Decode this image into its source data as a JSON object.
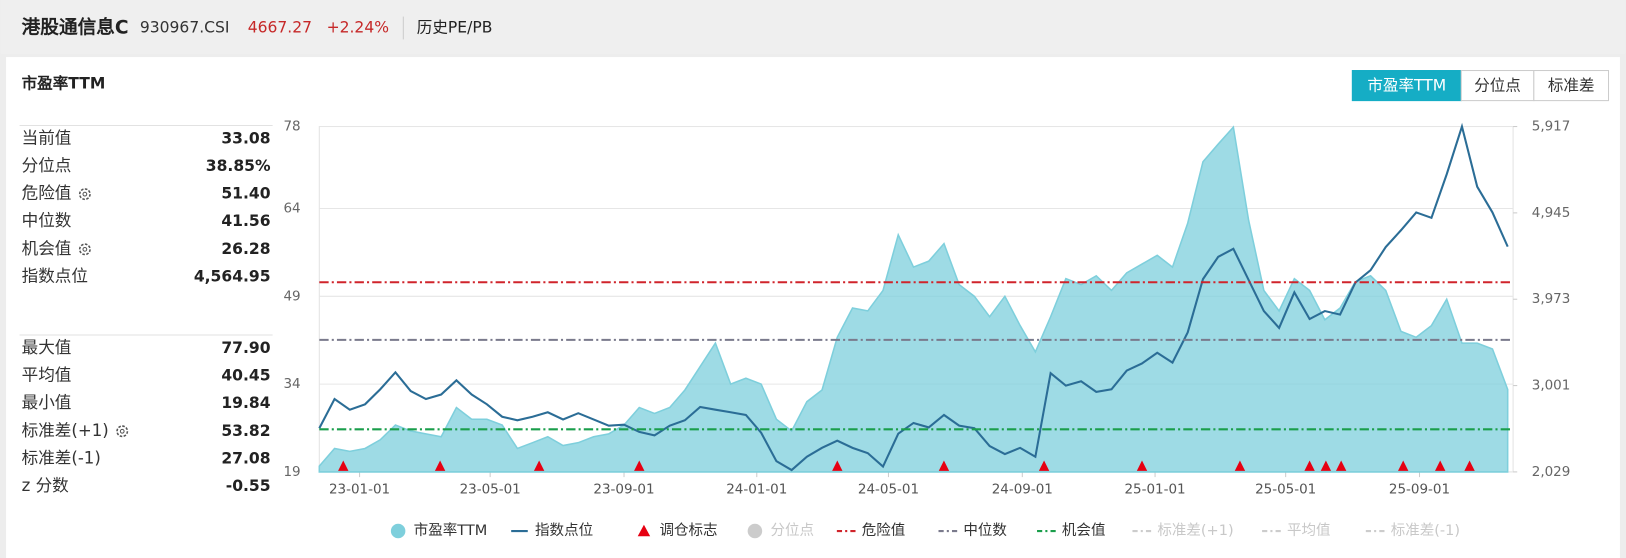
{
  "header": {
    "title": "港股通信息C",
    "code": "930967.CSI",
    "price": "4667.27",
    "change": "+2.24%",
    "tab": "历史PE/PB"
  },
  "panel": {
    "title": "市盈率TTM",
    "tabs": [
      "市盈率TTM",
      "分位点",
      "标准差"
    ],
    "active_tab": 0
  },
  "stats": {
    "groups": [
      [
        {
          "label": "当前值",
          "value": "33.08"
        },
        {
          "label": "分位点",
          "value": "38.85%"
        },
        {
          "label": "危险值",
          "value": "51.40",
          "gear": true
        },
        {
          "label": "中位数",
          "value": "41.56"
        },
        {
          "label": "机会值",
          "value": "26.28",
          "gear": true
        },
        {
          "label": "指数点位",
          "value": "4,564.95"
        }
      ],
      [
        {
          "label": "最大值",
          "value": "77.90"
        },
        {
          "label": "平均值",
          "value": "40.45"
        },
        {
          "label": "最小值",
          "value": "19.84"
        },
        {
          "label": "标准差(+1)",
          "value": "53.82",
          "gear": true
        },
        {
          "label": "标准差(-1)",
          "value": "27.08"
        },
        {
          "label": "z 分数",
          "value": "-0.55"
        }
      ]
    ]
  },
  "chart_data": {
    "type": "line",
    "x": [
      "22-11-25",
      "22-12-09",
      "22-12-23",
      "23-01-06",
      "23-01-20",
      "23-02-03",
      "23-02-17",
      "23-03-03",
      "23-03-17",
      "23-03-31",
      "23-04-14",
      "23-04-28",
      "23-05-12",
      "23-05-26",
      "23-06-09",
      "23-06-23",
      "23-07-07",
      "23-07-21",
      "23-08-04",
      "23-08-18",
      "23-09-01",
      "23-09-15",
      "23-09-29",
      "23-10-13",
      "23-10-27",
      "23-11-10",
      "23-11-24",
      "23-12-08",
      "23-12-22",
      "24-01-05",
      "24-01-19",
      "24-02-02",
      "24-02-16",
      "24-03-01",
      "24-03-15",
      "24-03-29",
      "24-04-12",
      "24-04-26",
      "24-05-10",
      "24-05-24",
      "24-06-07",
      "24-06-21",
      "24-07-05",
      "24-07-19",
      "24-08-02",
      "24-08-16",
      "24-08-30",
      "24-09-13",
      "24-09-27",
      "24-10-11",
      "24-10-25",
      "24-11-08",
      "24-11-22",
      "24-12-06",
      "24-12-20",
      "25-01-03",
      "25-01-17",
      "25-01-31",
      "25-02-14",
      "25-02-28",
      "25-03-14",
      "25-03-28",
      "25-04-11",
      "25-04-25",
      "25-05-09",
      "25-05-23",
      "25-06-06",
      "25-06-20",
      "25-07-04",
      "25-07-18",
      "25-08-01",
      "25-08-15",
      "25-08-29",
      "25-09-12",
      "25-09-26",
      "25-10-10",
      "25-10-24",
      "25-11-07",
      "25-11-21"
    ],
    "series": [
      {
        "name": "市盈率TTM",
        "type": "area",
        "color": "#7ecfdc",
        "axis": "y",
        "values": [
          20,
          23,
          22.5,
          23,
          24.5,
          27,
          26,
          25.5,
          25,
          30,
          28,
          28,
          27,
          23,
          24,
          25,
          23.5,
          24,
          25,
          25.5,
          27,
          30,
          29,
          30,
          33,
          37,
          41,
          34,
          35,
          34,
          28,
          26,
          31,
          33,
          42,
          47,
          46.5,
          50,
          59.5,
          54,
          55,
          58,
          51,
          49,
          45.5,
          49,
          44,
          39.5,
          45.5,
          52,
          51,
          52.5,
          50,
          53,
          54.5,
          56,
          54,
          61.5,
          72,
          75,
          77.9,
          62,
          50,
          46.5,
          52,
          50,
          45,
          47,
          51.5,
          52.5,
          50,
          43,
          42,
          44,
          48.5,
          41,
          41,
          40,
          33.08
        ]
      },
      {
        "name": "指数点位",
        "type": "line",
        "color": "#2b6d96",
        "axis": "y2",
        "values": [
          2520,
          2850,
          2730,
          2790,
          2960,
          3150,
          2940,
          2850,
          2900,
          3060,
          2900,
          2790,
          2650,
          2610,
          2650,
          2700,
          2620,
          2690,
          2620,
          2550,
          2560,
          2480,
          2440,
          2550,
          2610,
          2760,
          2730,
          2700,
          2670,
          2470,
          2150,
          2050,
          2200,
          2300,
          2380,
          2300,
          2240,
          2090,
          2460,
          2580,
          2530,
          2670,
          2550,
          2520,
          2320,
          2230,
          2300,
          2200,
          3140,
          3000,
          3050,
          2930,
          2960,
          3170,
          3250,
          3370,
          3260,
          3600,
          4200,
          4450,
          4540,
          4190,
          3840,
          3650,
          4050,
          3750,
          3840,
          3800,
          4160,
          4300,
          4560,
          4750,
          4950,
          4890,
          5380,
          5917,
          5240,
          4950,
          4564.95
        ]
      },
      {
        "name": "调仓标志",
        "type": "marker",
        "color": "#e60012",
        "dates": [
          "22-12-17",
          "23-03-16",
          "23-06-15",
          "23-09-15",
          "24-03-15",
          "24-06-21",
          "24-09-21",
          "24-12-20",
          "25-03-20",
          "25-05-23",
          "25-06-07",
          "25-06-21",
          "25-08-17",
          "25-09-20",
          "25-10-17"
        ]
      },
      {
        "name": "分位点",
        "type": "scatter",
        "color": "#cccccc",
        "visible": false
      },
      {
        "name": "危险值",
        "type": "reference",
        "color": "#d0242b",
        "value": 51.4
      },
      {
        "name": "中位数",
        "type": "reference",
        "color": "#7a7a8c",
        "value": 41.56
      },
      {
        "name": "机会值",
        "type": "reference",
        "color": "#1a9e4b",
        "value": 26.28
      },
      {
        "name": "标准差(+1)",
        "type": "reference",
        "color": "#cccccc",
        "visible": false
      },
      {
        "name": "平均值",
        "type": "reference",
        "color": "#cccccc",
        "visible": false
      },
      {
        "name": "标准差(-1)",
        "type": "reference",
        "color": "#cccccc",
        "visible": false
      }
    ],
    "xlim": [
      "22-11-25",
      "25-11-26"
    ],
    "xticks": [
      "23-01-01",
      "23-05-01",
      "23-09-01",
      "24-01-01",
      "24-05-01",
      "24-09-01",
      "25-01-01",
      "25-05-01",
      "25-09-01"
    ],
    "ylim": [
      19,
      78
    ],
    "yticks": [
      19,
      34,
      49,
      64,
      78
    ],
    "y2lim": [
      2029,
      5917
    ],
    "y2ticks": [
      {
        "value": 2029,
        "label": "2,029"
      },
      {
        "value": 3001,
        "label": "3,001"
      },
      {
        "value": 3973,
        "label": "3,973"
      },
      {
        "value": 4945,
        "label": "4,945"
      },
      {
        "value": 5917,
        "label": "5,917"
      }
    ],
    "grid": true,
    "legend": "bottom"
  }
}
